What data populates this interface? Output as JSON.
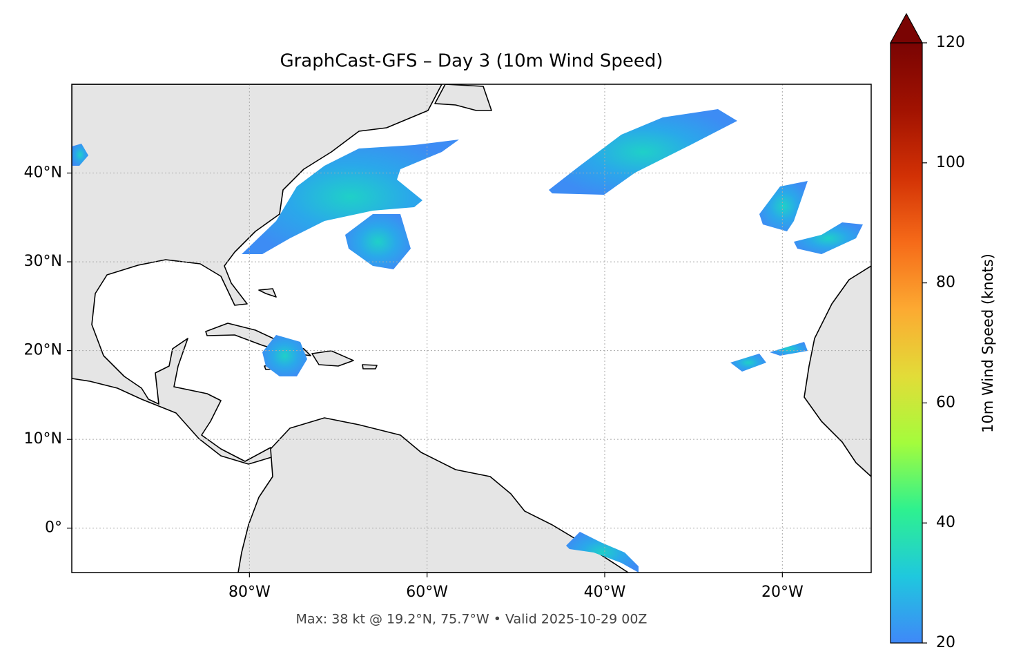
{
  "chart_data": {
    "type": "map",
    "title": "GraphCast-GFS – Day 3 (10m Wind Speed)",
    "annotation": "Max: 38 kt @ 19.2°N, 75.7°W • Valid 2025-10-29 00Z",
    "xlim": [
      -100,
      -10
    ],
    "ylim": [
      -5,
      50
    ],
    "xticks": [
      {
        "value": -80,
        "label": "80°W"
      },
      {
        "value": -60,
        "label": "60°W"
      },
      {
        "value": -40,
        "label": "40°W"
      },
      {
        "value": -20,
        "label": "20°W"
      }
    ],
    "yticks": [
      {
        "value": 0,
        "label": "0°"
      },
      {
        "value": 10,
        "label": "10°N"
      },
      {
        "value": 20,
        "label": "20°N"
      },
      {
        "value": 30,
        "label": "30°N"
      },
      {
        "value": 40,
        "label": "40°N"
      }
    ],
    "grid": true,
    "colorbar": {
      "label": "10m Wind Speed (knots)",
      "lim": [
        20,
        120
      ],
      "ticks": [
        20,
        40,
        60,
        80,
        100,
        120
      ],
      "extend": "max",
      "colors": [
        "#3f88f8",
        "#1fc8de",
        "#2ef18f",
        "#a4fc3c",
        "#e2dc38",
        "#fcaa32",
        "#f66b19",
        "#d23105",
        "#a11201",
        "#7a0403"
      ]
    }
  }
}
